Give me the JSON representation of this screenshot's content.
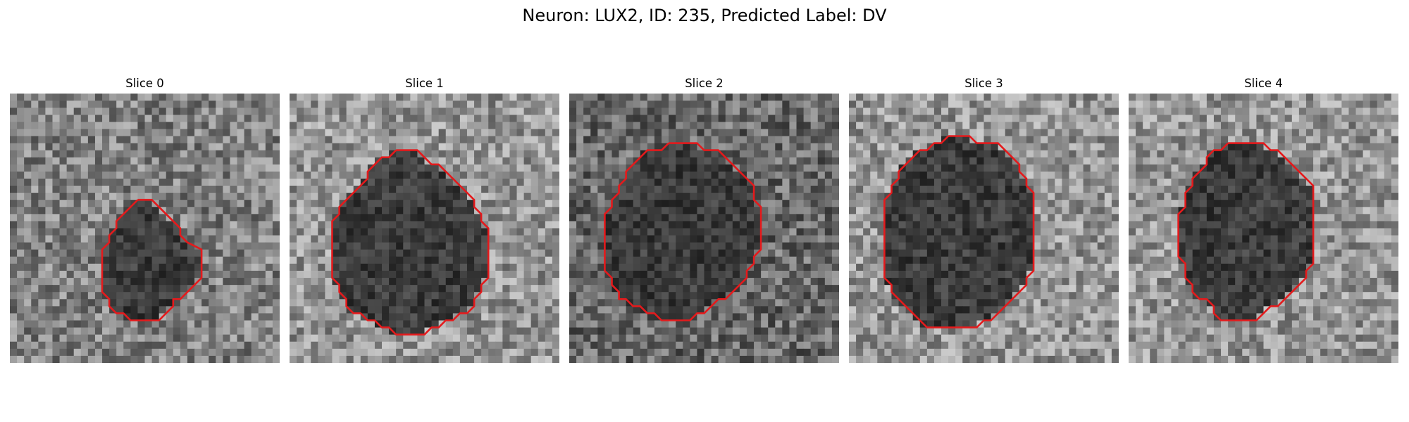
{
  "figure": {
    "title": "Neuron: LUX2, ID: 235, Predicted Label: DV"
  },
  "panels": [
    {
      "title": "Slice 0",
      "brightness": "mid",
      "contour_grid": [
        [
          18,
          15
        ],
        [
          20,
          15
        ],
        [
          21,
          16
        ],
        [
          22,
          17
        ],
        [
          23,
          18
        ],
        [
          24,
          19
        ],
        [
          24,
          20
        ],
        [
          25,
          21
        ],
        [
          27,
          22
        ],
        [
          27,
          23
        ],
        [
          27,
          24
        ],
        [
          27,
          25
        ],
        [
          27,
          26
        ],
        [
          26,
          27
        ],
        [
          25,
          28
        ],
        [
          24,
          29
        ],
        [
          23,
          29
        ],
        [
          23,
          30
        ],
        [
          22,
          31
        ],
        [
          21,
          32
        ],
        [
          17,
          32
        ],
        [
          16,
          31
        ],
        [
          15,
          31
        ],
        [
          14,
          30
        ],
        [
          14,
          29
        ],
        [
          13,
          28
        ],
        [
          13,
          27
        ],
        [
          13,
          26
        ],
        [
          13,
          25
        ],
        [
          13,
          24
        ],
        [
          13,
          23
        ],
        [
          13,
          22
        ],
        [
          14,
          21
        ],
        [
          14,
          20
        ],
        [
          15,
          19
        ],
        [
          15,
          18
        ],
        [
          16,
          17
        ],
        [
          17,
          16
        ],
        [
          18,
          15
        ]
      ]
    },
    {
      "title": "Slice 1",
      "brightness": "bright",
      "contour_grid": [
        [
          15,
          8
        ],
        [
          18,
          8
        ],
        [
          19,
          9
        ],
        [
          20,
          10
        ],
        [
          21,
          10
        ],
        [
          22,
          11
        ],
        [
          23,
          12
        ],
        [
          24,
          13
        ],
        [
          25,
          14
        ],
        [
          26,
          15
        ],
        [
          26,
          16
        ],
        [
          27,
          17
        ],
        [
          27,
          18
        ],
        [
          28,
          19
        ],
        [
          28,
          20
        ],
        [
          28,
          21
        ],
        [
          28,
          22
        ],
        [
          28,
          23
        ],
        [
          28,
          24
        ],
        [
          28,
          25
        ],
        [
          28,
          26
        ],
        [
          27,
          27
        ],
        [
          27,
          28
        ],
        [
          26,
          29
        ],
        [
          26,
          30
        ],
        [
          25,
          31
        ],
        [
          24,
          31
        ],
        [
          23,
          32
        ],
        [
          22,
          32
        ],
        [
          21,
          33
        ],
        [
          20,
          33
        ],
        [
          19,
          34
        ],
        [
          18,
          34
        ],
        [
          15,
          34
        ],
        [
          14,
          33
        ],
        [
          13,
          33
        ],
        [
          12,
          32
        ],
        [
          11,
          32
        ],
        [
          10,
          31
        ],
        [
          9,
          31
        ],
        [
          8,
          30
        ],
        [
          8,
          29
        ],
        [
          7,
          28
        ],
        [
          7,
          27
        ],
        [
          6,
          26
        ],
        [
          6,
          25
        ],
        [
          6,
          24
        ],
        [
          6,
          23
        ],
        [
          6,
          22
        ],
        [
          6,
          21
        ],
        [
          6,
          20
        ],
        [
          6,
          19
        ],
        [
          6,
          18
        ],
        [
          7,
          17
        ],
        [
          7,
          16
        ],
        [
          8,
          15
        ],
        [
          9,
          14
        ],
        [
          10,
          13
        ],
        [
          11,
          12
        ],
        [
          11,
          11
        ],
        [
          12,
          10
        ],
        [
          13,
          9
        ],
        [
          14,
          9
        ],
        [
          15,
          8
        ]
      ]
    },
    {
      "title": "Slice 2",
      "brightness": "dark",
      "contour_grid": [
        [
          14,
          7
        ],
        [
          18,
          7
        ],
        [
          19,
          8
        ],
        [
          21,
          8
        ],
        [
          22,
          9
        ],
        [
          23,
          10
        ],
        [
          24,
          11
        ],
        [
          25,
          12
        ],
        [
          26,
          13
        ],
        [
          26,
          14
        ],
        [
          26,
          15
        ],
        [
          27,
          16
        ],
        [
          27,
          17
        ],
        [
          27,
          18
        ],
        [
          27,
          19
        ],
        [
          27,
          20
        ],
        [
          27,
          21
        ],
        [
          27,
          22
        ],
        [
          26,
          23
        ],
        [
          26,
          24
        ],
        [
          25,
          25
        ],
        [
          25,
          26
        ],
        [
          24,
          27
        ],
        [
          23,
          28
        ],
        [
          22,
          29
        ],
        [
          21,
          29
        ],
        [
          20,
          30
        ],
        [
          19,
          31
        ],
        [
          18,
          31
        ],
        [
          17,
          32
        ],
        [
          13,
          32
        ],
        [
          12,
          31
        ],
        [
          11,
          31
        ],
        [
          10,
          30
        ],
        [
          9,
          30
        ],
        [
          8,
          29
        ],
        [
          7,
          29
        ],
        [
          7,
          28
        ],
        [
          6,
          27
        ],
        [
          6,
          26
        ],
        [
          5,
          25
        ],
        [
          5,
          24
        ],
        [
          5,
          23
        ],
        [
          5,
          22
        ],
        [
          5,
          21
        ],
        [
          5,
          20
        ],
        [
          5,
          19
        ],
        [
          5,
          18
        ],
        [
          5,
          17
        ],
        [
          6,
          16
        ],
        [
          6,
          15
        ],
        [
          7,
          14
        ],
        [
          7,
          13
        ],
        [
          8,
          12
        ],
        [
          8,
          11
        ],
        [
          9,
          10
        ],
        [
          10,
          9
        ],
        [
          11,
          8
        ],
        [
          13,
          8
        ],
        [
          14,
          7
        ]
      ]
    },
    {
      "title": "Slice 3",
      "brightness": "bright",
      "contour_grid": [
        [
          14,
          6
        ],
        [
          17,
          6
        ],
        [
          18,
          7
        ],
        [
          21,
          7
        ],
        [
          22,
          8
        ],
        [
          23,
          9
        ],
        [
          24,
          10
        ],
        [
          24,
          11
        ],
        [
          25,
          12
        ],
        [
          25,
          13
        ],
        [
          26,
          14
        ],
        [
          26,
          15
        ],
        [
          26,
          16
        ],
        [
          26,
          17
        ],
        [
          26,
          18
        ],
        [
          26,
          19
        ],
        [
          26,
          20
        ],
        [
          26,
          21
        ],
        [
          26,
          22
        ],
        [
          26,
          23
        ],
        [
          26,
          24
        ],
        [
          26,
          25
        ],
        [
          25,
          26
        ],
        [
          25,
          27
        ],
        [
          24,
          28
        ],
        [
          23,
          29
        ],
        [
          22,
          30
        ],
        [
          21,
          31
        ],
        [
          20,
          32
        ],
        [
          19,
          32
        ],
        [
          18,
          33
        ],
        [
          11,
          33
        ],
        [
          10,
          32
        ],
        [
          9,
          31
        ],
        [
          8,
          30
        ],
        [
          7,
          29
        ],
        [
          6,
          28
        ],
        [
          6,
          27
        ],
        [
          5,
          26
        ],
        [
          5,
          25
        ],
        [
          5,
          24
        ],
        [
          5,
          23
        ],
        [
          5,
          22
        ],
        [
          5,
          21
        ],
        [
          5,
          20
        ],
        [
          5,
          19
        ],
        [
          5,
          18
        ],
        [
          5,
          17
        ],
        [
          5,
          16
        ],
        [
          5,
          15
        ],
        [
          6,
          14
        ],
        [
          6,
          13
        ],
        [
          7,
          12
        ],
        [
          7,
          11
        ],
        [
          8,
          10
        ],
        [
          9,
          9
        ],
        [
          10,
          8
        ],
        [
          11,
          8
        ],
        [
          12,
          7
        ],
        [
          13,
          7
        ],
        [
          14,
          6
        ]
      ]
    },
    {
      "title": "Slice 4",
      "brightness": "bright",
      "contour_grid": [
        [
          14,
          7
        ],
        [
          19,
          7
        ],
        [
          20,
          8
        ],
        [
          21,
          8
        ],
        [
          22,
          9
        ],
        [
          23,
          10
        ],
        [
          24,
          11
        ],
        [
          25,
          12
        ],
        [
          26,
          13
        ],
        [
          26,
          14
        ],
        [
          26,
          15
        ],
        [
          26,
          16
        ],
        [
          26,
          17
        ],
        [
          26,
          18
        ],
        [
          26,
          19
        ],
        [
          26,
          20
        ],
        [
          26,
          21
        ],
        [
          26,
          22
        ],
        [
          26,
          23
        ],
        [
          26,
          24
        ],
        [
          25,
          25
        ],
        [
          25,
          26
        ],
        [
          24,
          27
        ],
        [
          23,
          28
        ],
        [
          22,
          29
        ],
        [
          21,
          30
        ],
        [
          20,
          30
        ],
        [
          19,
          31
        ],
        [
          18,
          32
        ],
        [
          13,
          32
        ],
        [
          12,
          31
        ],
        [
          12,
          30
        ],
        [
          11,
          29
        ],
        [
          10,
          29
        ],
        [
          9,
          28
        ],
        [
          9,
          27
        ],
        [
          8,
          26
        ],
        [
          8,
          25
        ],
        [
          8,
          24
        ],
        [
          7,
          23
        ],
        [
          7,
          22
        ],
        [
          7,
          21
        ],
        [
          7,
          20
        ],
        [
          7,
          19
        ],
        [
          7,
          18
        ],
        [
          7,
          17
        ],
        [
          8,
          16
        ],
        [
          8,
          15
        ],
        [
          8,
          14
        ],
        [
          9,
          13
        ],
        [
          9,
          12
        ],
        [
          10,
          11
        ],
        [
          11,
          10
        ],
        [
          11,
          9
        ],
        [
          12,
          8
        ],
        [
          13,
          8
        ],
        [
          14,
          7
        ]
      ]
    }
  ]
}
